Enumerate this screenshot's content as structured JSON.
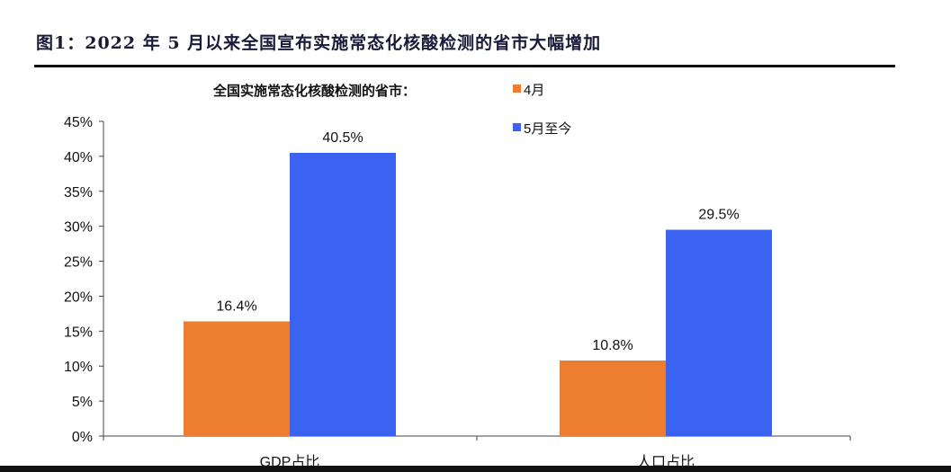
{
  "figure_title": "图1：2022 年 5 月以来全国宣布实施常态化核酸检测的省市大幅增加",
  "chart_data": {
    "type": "bar",
    "title": "",
    "legend_title": "全国实施常态化核酸检测的省市：",
    "legend_position": "top-right",
    "categories": [
      "GDP占比",
      "人口占比"
    ],
    "series": [
      {
        "name": "4月",
        "values": [
          16.4,
          10.8
        ],
        "color": "#ED7D31",
        "labels": [
          "16.4%",
          "10.8%"
        ]
      },
      {
        "name": "5月至今",
        "values": [
          40.5,
          29.5
        ],
        "color": "#3B63F2",
        "labels": [
          "40.5%",
          "29.5%"
        ]
      }
    ],
    "ylim": [
      0,
      45
    ],
    "yticks": [
      "0%",
      "5%",
      "10%",
      "15%",
      "20%",
      "25%",
      "30%",
      "35%",
      "40%",
      "45%"
    ],
    "ylabel": "",
    "xlabel": "",
    "grid": false
  }
}
